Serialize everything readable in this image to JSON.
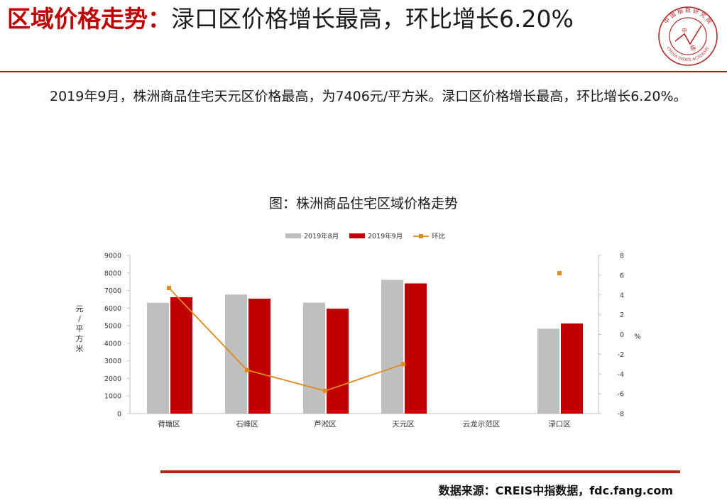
{
  "header": {
    "title_accent": "区域价格走势：",
    "title_rest": "渌口区价格增长最高，环比增长6.20%"
  },
  "logo": {
    "ring_text": "中 国 指 数 研 究 院",
    "ring_text_en": "CHINA INDEX ACADEMY",
    "center_text_top": "中",
    "center_text_bottom": "指",
    "color": "#b22a2a"
  },
  "summary": {
    "text": "2019年9月，株洲商品住宅天元区价格最高，为7406元/平方米。渌口区价格增长最高，环比增长6.20%。"
  },
  "chart_data": {
    "type": "bar",
    "title": "图：株洲商品住宅区域价格走势",
    "categories": [
      "荷塘区",
      "石峰区",
      "芦淞区",
      "天元区",
      "云龙示范区",
      "渌口区"
    ],
    "series": [
      {
        "name": "2019年8月",
        "type": "bar",
        "axis": "left",
        "color": "#bfbfbf",
        "values": [
          6300,
          6770,
          6310,
          7610,
          null,
          4830
        ]
      },
      {
        "name": "2019年9月",
        "type": "bar",
        "axis": "left",
        "color": "#c00000",
        "values": [
          6620,
          6540,
          5970,
          7406,
          null,
          5130
        ]
      },
      {
        "name": "环比",
        "type": "line",
        "axis": "right",
        "color": "#e08a1e",
        "values": [
          4.7,
          -3.6,
          -5.7,
          -3.0,
          null,
          6.2
        ]
      }
    ],
    "ylabel": "元/平方米",
    "ylim": [
      0,
      9000
    ],
    "yticks": [
      0,
      1000,
      2000,
      3000,
      4000,
      5000,
      6000,
      7000,
      8000,
      9000
    ],
    "y2label": "%",
    "y2lim": [
      -8,
      8
    ],
    "y2ticks": [
      -8,
      -6,
      -4,
      -2,
      0,
      2,
      4,
      6,
      8
    ],
    "legend": "top-center",
    "grid": false
  },
  "footer": {
    "source": "数据来源：CREIS中指数据，fdc.fang.com"
  }
}
